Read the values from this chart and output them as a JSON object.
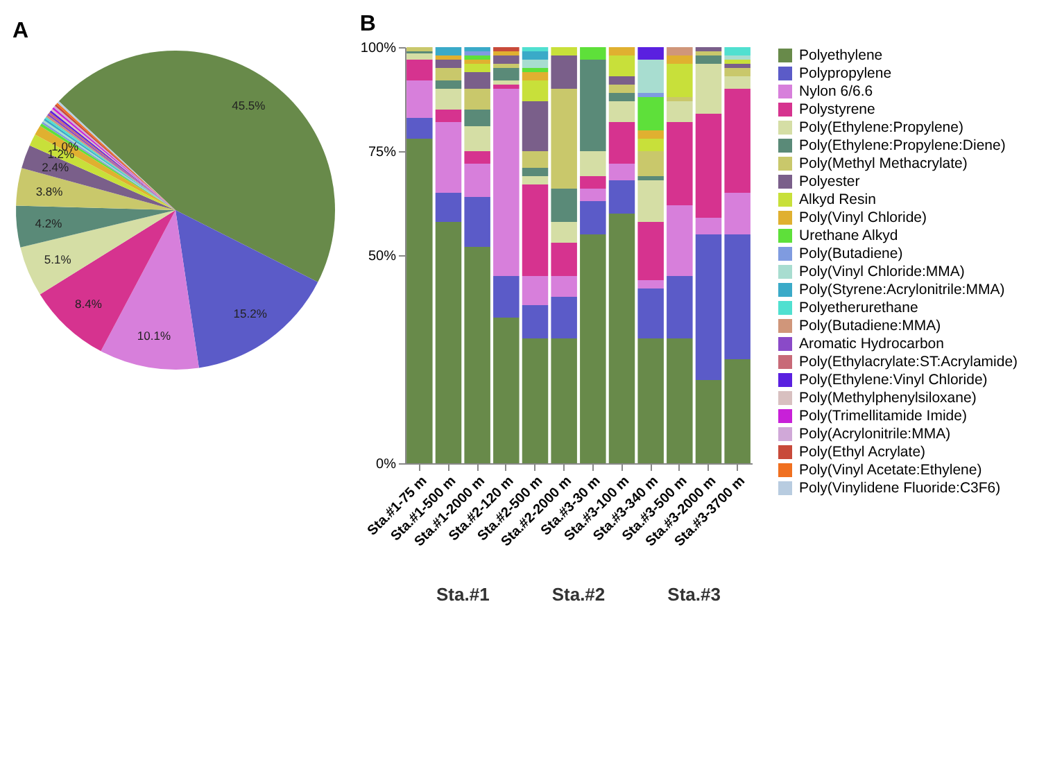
{
  "chart_data": [
    {
      "type": "pie",
      "title": "A",
      "legend": "right",
      "categories": [
        "Polyethylene",
        "Polypropylene",
        "Nylon 6/6.6",
        "Polystyrene",
        "Poly(Ethylene:Propylene)",
        "Poly(Ethylene:Propylene:Diene)",
        "Poly(Methyl Methacrylate)",
        "Polyester",
        "Alkyd Resin",
        "Poly(Vinyl Chloride)",
        "Urethane Alkyd",
        "Poly(Butadiene)",
        "Poly(Vinyl Chloride:MMA)",
        "Poly(Styrene:Acrylonitrile:MMA)",
        "Polyetherurethane",
        "Poly(Butadiene:MMA)",
        "Aromatic Hydrocarbon",
        "Poly(Ethylacrylate:ST:Acrylamide)",
        "Poly(Ethylene:Vinyl Chloride)",
        "Poly(Methylphenylsiloxane)",
        "Poly(Trimellitamide Imide)",
        "Poly(Acrylonitrile:MMA)",
        "Poly(Ethyl Acrylate)",
        "Poly(Vinyl Acetate:Ethylene)",
        "Poly(Vinylidene Fluoride:C3F6)"
      ],
      "values": [
        45.5,
        15.2,
        10.1,
        8.4,
        5.1,
        4.2,
        3.8,
        2.4,
        1.2,
        1.0,
        0.3,
        0.2,
        0.2,
        0.2,
        0.2,
        0.2,
        0.2,
        0.2,
        0.2,
        0.2,
        0.2,
        0.2,
        0.2,
        0.2,
        0.2
      ],
      "value_labels": [
        "45.5%",
        "15.2%",
        "10.1%",
        "8.4%",
        "5.1%",
        "4.2%",
        "3.8%",
        "2.4%",
        "1.2%",
        "1.0%",
        null,
        null,
        null,
        null,
        null,
        null,
        null,
        null,
        null,
        null,
        null,
        null,
        null,
        null,
        null
      ],
      "colors": [
        "#688a4a",
        "#5b5bc8",
        "#d77fdb",
        "#d6338f",
        "#d5dea5",
        "#5a8a78",
        "#c9c86b",
        "#7a5f8a",
        "#c8e03a",
        "#e0b030",
        "#5ee03a",
        "#7f9be0",
        "#a8ddd0",
        "#3aaac8",
        "#50e0d0",
        "#d0967a",
        "#8a4ac8",
        "#c86a78",
        "#5a20e0",
        "#d8c0c0",
        "#c820d8",
        "#d0a8d8",
        "#c84a3a",
        "#f07020",
        "#b8cce0"
      ]
    },
    {
      "type": "bar",
      "stacked": true,
      "title": "B",
      "categories": [
        "Sta.#1-75 m",
        "Sta.#1-500 m",
        "Sta.#1-2000 m",
        "Sta.#2-120 m",
        "Sta.#2-500 m",
        "Sta.#2-2000 m",
        "Sta.#3-30 m",
        "Sta.#3-100 m",
        "Sta.#3-340 m",
        "Sta.#3-500 m",
        "Sta.#3-2000 m",
        "Sta.#3-3700 m"
      ],
      "ylim": [
        0,
        100
      ],
      "yticks": [
        {
          "value": 0,
          "label": "0%"
        },
        {
          "value": 50,
          "label": "50%"
        },
        {
          "value": 75,
          "label": "75%"
        },
        {
          "value": 100,
          "label": "100%"
        }
      ],
      "annotations": [
        "Sta.#1",
        "Sta.#2",
        "Sta.#3"
      ],
      "series": [
        {
          "name": "Polyethylene",
          "color": "#688a4a",
          "values": [
            78,
            58,
            52,
            35,
            30,
            30,
            55,
            60,
            30,
            30,
            20,
            25
          ]
        },
        {
          "name": "Polypropylene",
          "color": "#5b5bc8",
          "values": [
            5,
            7,
            12,
            10,
            8,
            10,
            8,
            8,
            12,
            15,
            35,
            30
          ]
        },
        {
          "name": "Nylon 6/6.6",
          "color": "#d77fdb",
          "values": [
            9,
            17,
            8,
            45,
            7,
            5,
            3,
            4,
            2,
            17,
            4,
            10
          ]
        },
        {
          "name": "Polystyrene",
          "color": "#d6338f",
          "values": [
            5,
            3,
            3,
            1,
            22,
            8,
            3,
            10,
            14,
            20,
            25,
            25
          ]
        },
        {
          "name": "Poly(Ethylene:Propylene)",
          "color": "#d5dea5",
          "values": [
            1.5,
            5,
            6,
            1,
            2,
            5,
            6,
            5,
            10,
            5,
            12,
            3
          ]
        },
        {
          "name": "Poly(Ethylene:Propylene:Diene)",
          "color": "#5a8a78",
          "values": [
            0.5,
            2,
            4,
            3,
            2,
            8,
            22,
            2,
            1,
            0,
            2,
            0
          ]
        },
        {
          "name": "Poly(Methyl Methacrylate)",
          "color": "#c9c86b",
          "values": [
            1,
            3,
            5,
            1,
            4,
            24,
            0,
            2,
            6,
            1,
            1,
            2
          ]
        },
        {
          "name": "Polyester",
          "color": "#7a5f8a",
          "values": [
            0,
            2,
            4,
            2,
            12,
            8,
            0,
            2,
            0,
            0,
            1,
            1
          ]
        },
        {
          "name": "Alkyd Resin",
          "color": "#c8e03a",
          "values": [
            0,
            0,
            2,
            0,
            5,
            2,
            0,
            5,
            3,
            8,
            0,
            1
          ]
        },
        {
          "name": "Poly(Vinyl Chloride)",
          "color": "#e0b030",
          "values": [
            0,
            1,
            1,
            1,
            2,
            0,
            0,
            2,
            2,
            2,
            0,
            0
          ]
        },
        {
          "name": "Urethane Alkyd",
          "color": "#5ee03a",
          "values": [
            0,
            0,
            1,
            0,
            1,
            0,
            3,
            0,
            8,
            0,
            0,
            0
          ]
        },
        {
          "name": "Poly(Butadiene)",
          "color": "#7f9be0",
          "values": [
            0,
            0,
            1,
            0,
            0,
            0,
            0,
            0,
            1,
            0,
            0,
            0
          ]
        },
        {
          "name": "Poly(Vinyl Chloride:MMA)",
          "color": "#a8ddd0",
          "values": [
            0,
            0,
            0,
            0,
            2,
            0,
            0,
            0,
            8,
            0,
            0,
            1
          ]
        },
        {
          "name": "Poly(Styrene:Acrylonitrile:MMA)",
          "color": "#3aaac8",
          "values": [
            0,
            2,
            1,
            0,
            2,
            0,
            0,
            0,
            0,
            0,
            0,
            0
          ]
        },
        {
          "name": "Polyetherurethane",
          "color": "#50e0d0",
          "values": [
            0,
            0,
            0,
            0,
            1,
            0,
            0,
            0,
            0,
            0,
            0,
            2
          ]
        },
        {
          "name": "Poly(Butadiene:MMA)",
          "color": "#d0967a",
          "values": [
            0,
            0,
            0,
            0,
            0,
            0,
            0,
            0,
            0,
            2,
            0,
            0
          ]
        },
        {
          "name": "Aromatic Hydrocarbon",
          "color": "#8a4ac8",
          "values": [
            0,
            0,
            0,
            0,
            0,
            0,
            0,
            0,
            0,
            0,
            0,
            0
          ]
        },
        {
          "name": "Poly(Ethylacrylate:ST:Acrylamide)",
          "color": "#c86a78",
          "values": [
            0,
            0,
            0,
            0,
            0,
            0,
            0,
            0,
            0,
            0,
            0,
            0
          ]
        },
        {
          "name": "Poly(Ethylene:Vinyl Chloride)",
          "color": "#5a20e0",
          "values": [
            0,
            0,
            0,
            0,
            0,
            0,
            0,
            0,
            3,
            0,
            0,
            0
          ]
        },
        {
          "name": "Poly(Methylphenylsiloxane)",
          "color": "#d8c0c0",
          "values": [
            0,
            0,
            0,
            0,
            0,
            0,
            0,
            0,
            0,
            0,
            0,
            0
          ]
        },
        {
          "name": "Poly(Trimellitamide Imide)",
          "color": "#c820d8",
          "values": [
            0,
            0,
            0,
            0,
            0,
            0,
            0,
            0,
            0,
            0,
            0,
            0
          ]
        },
        {
          "name": "Poly(Acrylonitrile:MMA)",
          "color": "#d0a8d8",
          "values": [
            0,
            0,
            0,
            0,
            0,
            0,
            0,
            0,
            0,
            0,
            0,
            0
          ]
        },
        {
          "name": "Poly(Ethyl Acrylate)",
          "color": "#c84a3a",
          "values": [
            0,
            0,
            0,
            1,
            0,
            0,
            0,
            0,
            0,
            0,
            0,
            0
          ]
        },
        {
          "name": "Poly(Vinyl Acetate:Ethylene)",
          "color": "#f07020",
          "values": [
            0,
            0,
            0,
            0,
            0,
            0,
            0,
            0,
            0,
            0,
            0,
            0
          ]
        },
        {
          "name": "Poly(Vinylidene Fluoride:C3F6)",
          "color": "#b8cce0",
          "values": [
            0,
            0,
            0,
            0,
            0,
            0,
            0,
            0,
            0,
            0,
            0,
            0
          ]
        }
      ]
    }
  ]
}
